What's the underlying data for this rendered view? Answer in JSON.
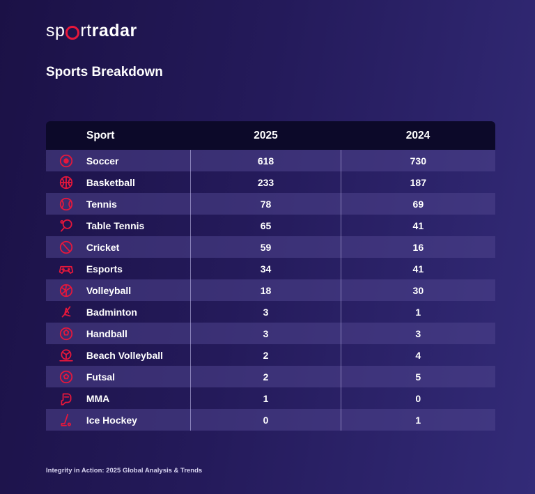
{
  "brand": {
    "logo_left": "sp",
    "logo_mid": "rt",
    "logo_right": "radar",
    "accent_color": "#e8173b"
  },
  "page_title": "Sports Breakdown",
  "table": {
    "headers": {
      "sport": "Sport",
      "year1": "2025",
      "year2": "2024"
    },
    "rows": [
      {
        "icon": "soccer-ball-icon",
        "sport": "Soccer",
        "y2025": "618",
        "y2024": "730"
      },
      {
        "icon": "basketball-icon",
        "sport": "Basketball",
        "y2025": "233",
        "y2024": "187"
      },
      {
        "icon": "tennis-ball-icon",
        "sport": "Tennis",
        "y2025": "78",
        "y2024": "69"
      },
      {
        "icon": "table-tennis-paddle-icon",
        "sport": "Table Tennis",
        "y2025": "65",
        "y2024": "41"
      },
      {
        "icon": "cricket-ball-icon",
        "sport": "Cricket",
        "y2025": "59",
        "y2024": "16"
      },
      {
        "icon": "game-controller-icon",
        "sport": "Esports",
        "y2025": "34",
        "y2024": "41"
      },
      {
        "icon": "volleyball-icon",
        "sport": "Volleyball",
        "y2025": "18",
        "y2024": "30"
      },
      {
        "icon": "shuttlecock-icon",
        "sport": "Badminton",
        "y2025": "3",
        "y2024": "1"
      },
      {
        "icon": "handball-icon",
        "sport": "Handball",
        "y2025": "3",
        "y2024": "3"
      },
      {
        "icon": "beach-volleyball-icon",
        "sport": "Beach Volleyball",
        "y2025": "2",
        "y2024": "4"
      },
      {
        "icon": "futsal-ball-icon",
        "sport": "Futsal",
        "y2025": "2",
        "y2024": "5"
      },
      {
        "icon": "mma-glove-icon",
        "sport": "MMA",
        "y2025": "1",
        "y2024": "0"
      },
      {
        "icon": "ice-hockey-stick-icon",
        "sport": "Ice Hockey",
        "y2025": "0",
        "y2024": "1"
      }
    ]
  },
  "footer": "Integrity in Action: 2025 Global Analysis & Trends"
}
